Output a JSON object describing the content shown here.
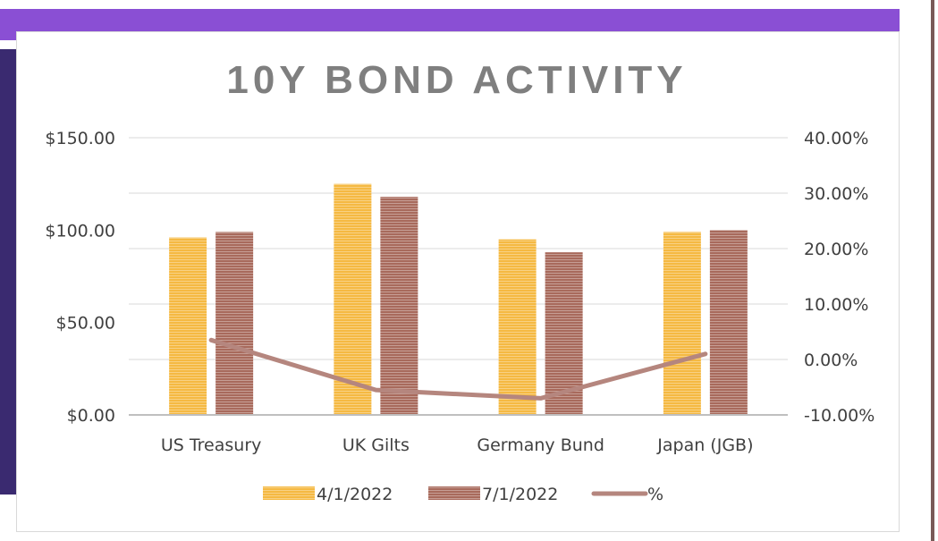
{
  "chart_data": {
    "type": "bar",
    "title": "10Y BOND ACTIVITY",
    "categories": [
      "US Treasury",
      "UK Gilts",
      "Germany Bund",
      "Japan (JGB)"
    ],
    "series": [
      {
        "name": "4/1/2022",
        "type": "bar",
        "axis": "left",
        "color": "#f5b942",
        "values": [
          96,
          125,
          95,
          99
        ]
      },
      {
        "name": "7/1/2022",
        "type": "bar",
        "axis": "left",
        "color": "#a86a5c",
        "values": [
          99,
          118,
          88,
          100
        ]
      },
      {
        "name": "%",
        "type": "line",
        "axis": "right",
        "color": "#b5867e",
        "values": [
          3.5,
          -5.5,
          -7.0,
          1.0
        ]
      }
    ],
    "left_axis": {
      "ylim": [
        0,
        150
      ],
      "ticks": [
        0,
        50,
        100,
        150
      ],
      "tick_labels": [
        "$0.00",
        "$50.00",
        "$100.00",
        "$150.00"
      ]
    },
    "right_axis": {
      "ylim": [
        -10,
        40
      ],
      "ticks": [
        -10,
        0,
        10,
        20,
        30,
        40
      ],
      "tick_labels": [
        "-10.00%",
        "0.00%",
        "10.00%",
        "20.00%",
        "30.00%",
        "40.00%"
      ]
    },
    "grid": true,
    "legend_position": "bottom"
  }
}
